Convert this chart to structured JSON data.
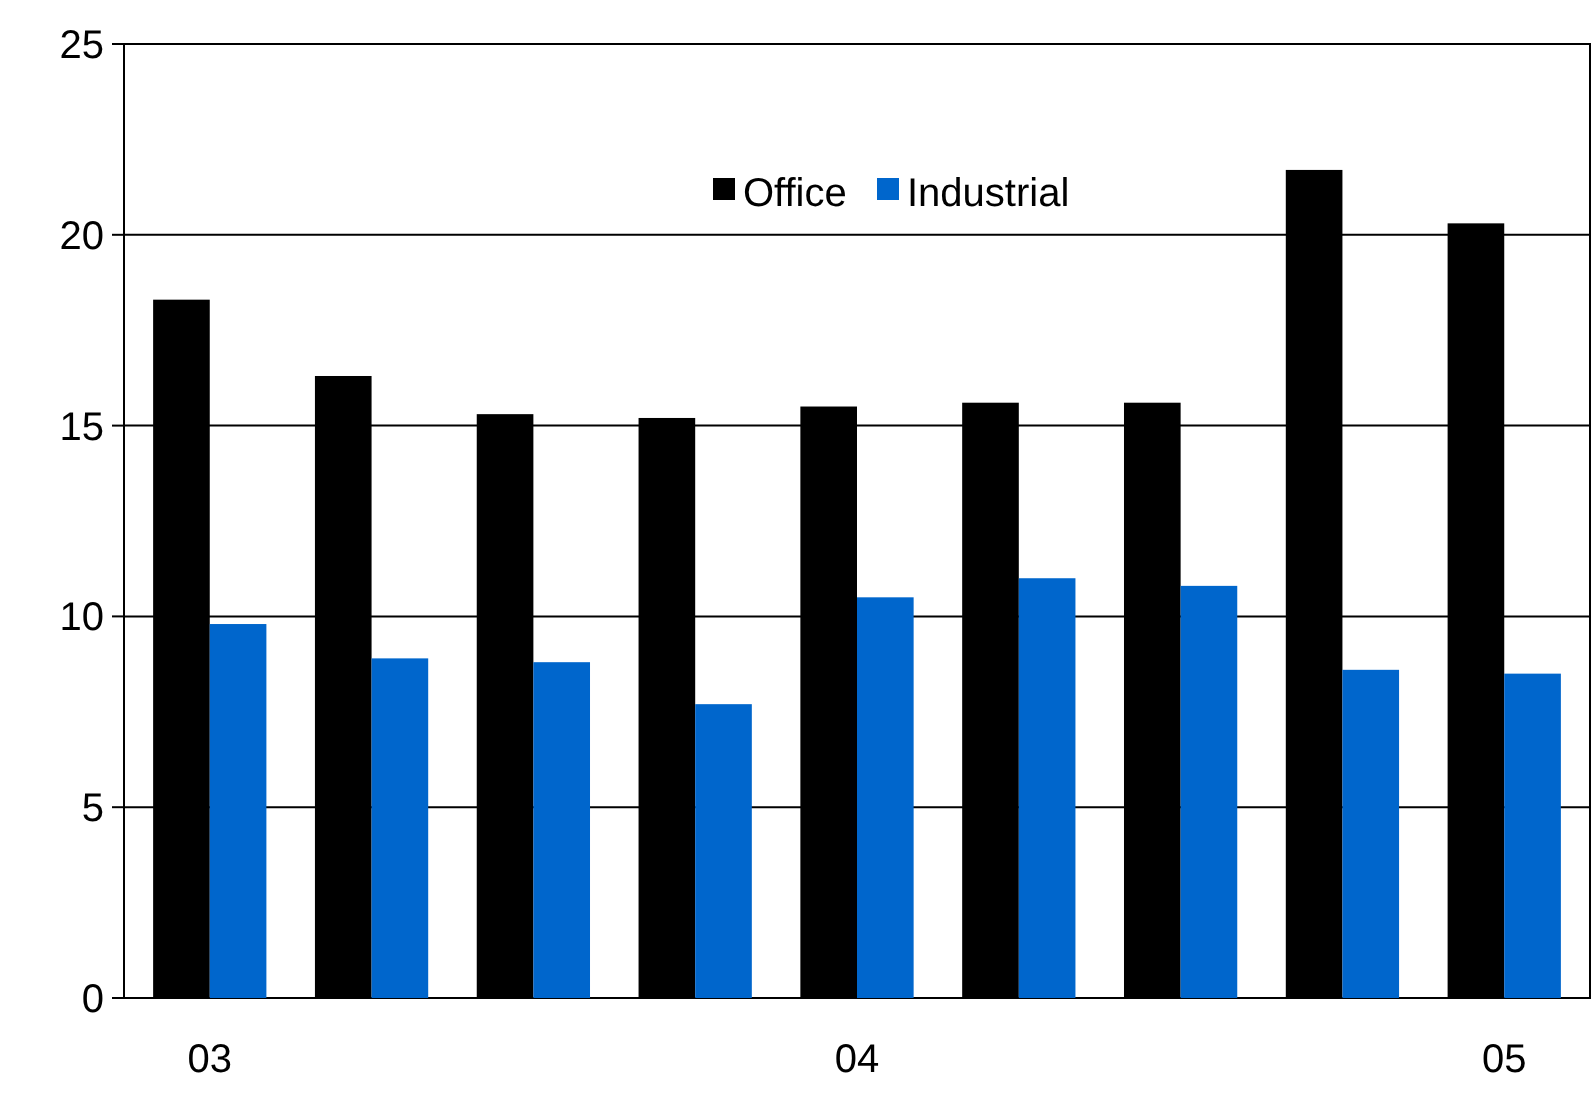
{
  "chart_data": {
    "type": "bar",
    "categories": [
      "03",
      null,
      null,
      null,
      "04",
      null,
      null,
      null,
      "05"
    ],
    "series": [
      {
        "name": "Office",
        "color": "#000000",
        "values": [
          18.3,
          16.3,
          15.3,
          15.2,
          15.5,
          15.6,
          15.6,
          21.7,
          20.3
        ]
      },
      {
        "name": "Industrial",
        "color": "#0066cc",
        "values": [
          9.8,
          8.9,
          8.8,
          7.7,
          10.5,
          11.0,
          10.8,
          8.6,
          8.5
        ]
      }
    ],
    "ylim": [
      0,
      25
    ],
    "yticks": [
      0,
      5,
      10,
      15,
      20,
      25
    ],
    "grid": "y",
    "legend": "top"
  }
}
